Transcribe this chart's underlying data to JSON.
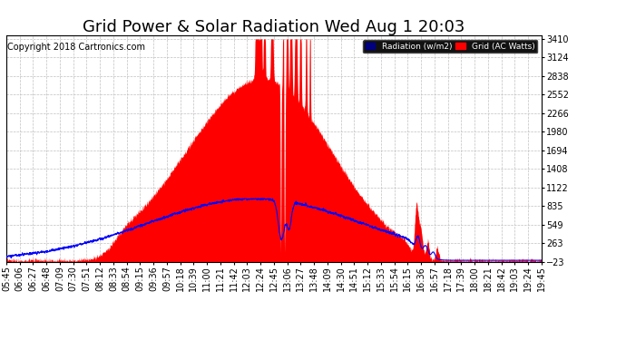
{
  "title": "Grid Power & Solar Radiation Wed Aug 1 20:03",
  "copyright": "Copyright 2018 Cartronics.com",
  "y_min": -23.0,
  "y_max": 3410.5,
  "y_ticks": [
    3410.5,
    3124.4,
    2838.3,
    2552.1,
    2266.0,
    1979.9,
    1693.8,
    1407.6,
    1121.5,
    835.4,
    549.2,
    263.1,
    -23.0
  ],
  "legend_radiation_label": "Radiation (w/m2)",
  "legend_grid_label": "Grid (AC Watts)",
  "legend_radiation_bg": "#000080",
  "legend_grid_bg": "#ff0000",
  "background_color": "#ffffff",
  "plot_bg_color": "#ffffff",
  "grid_color": "#c0c0c0",
  "red_fill_color": "#ff0000",
  "blue_line_color": "#0000ff",
  "x_labels": [
    "05:45",
    "06:06",
    "06:27",
    "06:48",
    "07:09",
    "07:30",
    "07:51",
    "08:12",
    "08:33",
    "08:54",
    "09:15",
    "09:36",
    "09:57",
    "10:18",
    "10:39",
    "11:00",
    "11:21",
    "11:42",
    "12:03",
    "12:24",
    "12:45",
    "13:06",
    "13:27",
    "13:48",
    "14:09",
    "14:30",
    "14:51",
    "15:12",
    "15:33",
    "15:54",
    "16:15",
    "16:36",
    "16:57",
    "17:18",
    "17:39",
    "18:00",
    "18:21",
    "18:42",
    "19:03",
    "19:24",
    "19:45"
  ],
  "title_fontsize": 13,
  "tick_fontsize": 7,
  "copyright_fontsize": 7
}
